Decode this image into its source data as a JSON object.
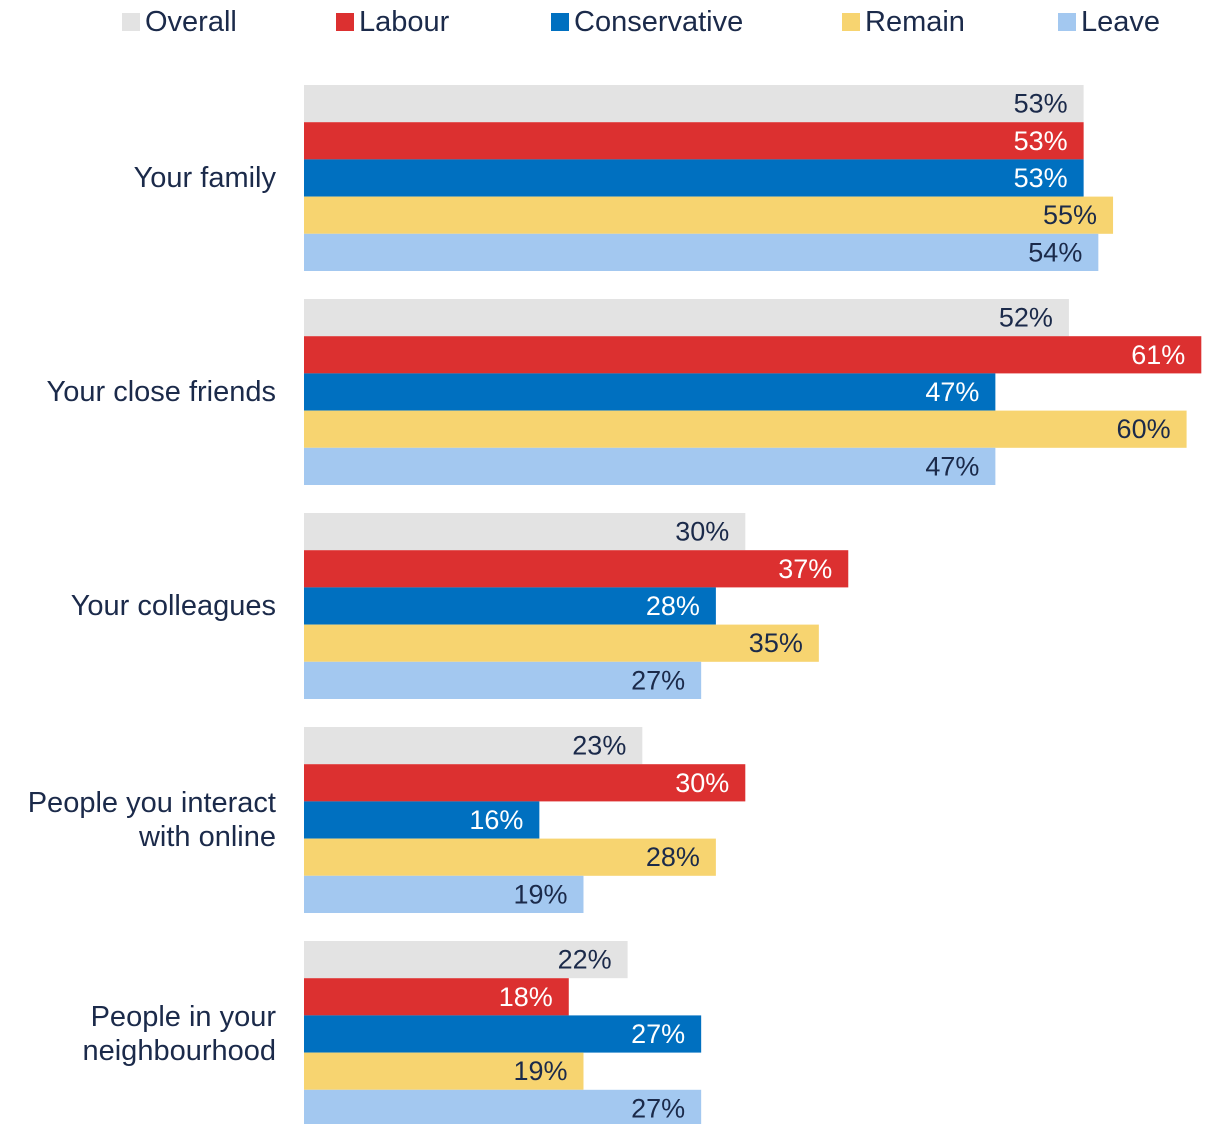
{
  "chart_data": {
    "type": "bar",
    "orientation": "horizontal",
    "unit": "%",
    "xlim": [
      0,
      61
    ],
    "grid": false,
    "legend_position": "top",
    "categories": [
      [
        "Your family"
      ],
      [
        "Your close friends"
      ],
      [
        "Your colleagues"
      ],
      [
        "People you interact",
        "with online"
      ],
      [
        "People in your",
        "neighbourhood"
      ]
    ],
    "series": [
      {
        "name": "Overall",
        "color": "#e3e3e3",
        "label_color": "#1b2a4a",
        "values": [
          53,
          52,
          30,
          23,
          22
        ]
      },
      {
        "name": "Labour",
        "color": "#dc3030",
        "label_color": "#ffffff",
        "values": [
          53,
          61,
          37,
          30,
          18
        ]
      },
      {
        "name": "Conservative",
        "color": "#0070c0",
        "label_color": "#ffffff",
        "values": [
          53,
          47,
          28,
          16,
          27
        ]
      },
      {
        "name": "Remain",
        "color": "#f7d470",
        "label_color": "#1b2a4a",
        "values": [
          55,
          60,
          35,
          28,
          19
        ]
      },
      {
        "name": "Leave",
        "color": "#a3c8f0",
        "label_color": "#1b2a4a",
        "values": [
          54,
          47,
          27,
          19,
          27
        ]
      }
    ]
  }
}
